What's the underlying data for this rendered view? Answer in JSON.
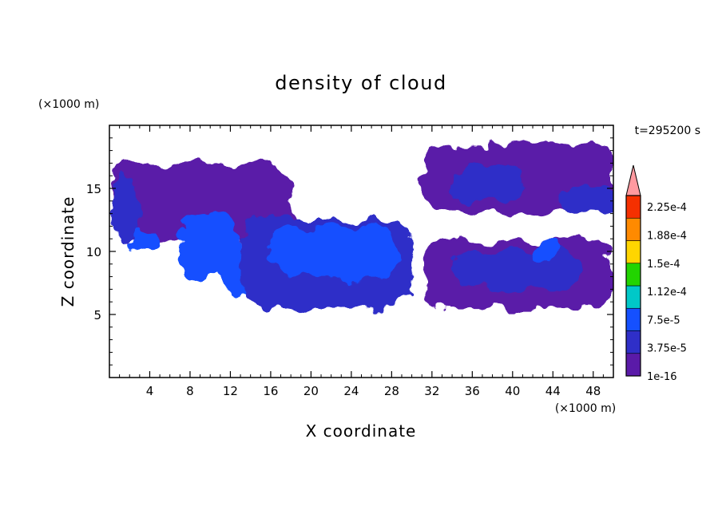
{
  "chart_data": {
    "type": "heatmap",
    "title": "density of cloud",
    "xlabel": "X coordinate",
    "ylabel": "Z coordinate",
    "x_unit": "(×1000 m)",
    "y_unit": "(×1000 m)",
    "time_label": "t=295200 s",
    "xlim": [
      0,
      50
    ],
    "ylim": [
      0,
      20
    ],
    "x_ticks": [
      4,
      8,
      12,
      16,
      20,
      24,
      28,
      32,
      36,
      40,
      44,
      48
    ],
    "y_ticks": [
      5,
      10,
      15
    ],
    "colorbar": {
      "labels": [
        "1e-16",
        "3.75e-5",
        "7.5e-5",
        "1.12e-4",
        "1.5e-4",
        "1.88e-4",
        "2.25e-4"
      ],
      "colors": [
        "#5a1aa8",
        "#2f2fc8",
        "#1550ff",
        "#00c8c8",
        "#22d400",
        "#ffd500",
        "#ff8a00",
        "#f53000",
        "#ff9aa0"
      ],
      "extend": "max"
    },
    "regions": [
      {
        "x": [
          0.2,
          18
        ],
        "z": [
          11,
          17
        ],
        "value": 0.25
      },
      {
        "x": [
          0.2,
          3
        ],
        "z": [
          11,
          16
        ],
        "value": 1.2
      },
      {
        "x": [
          2,
          5
        ],
        "z": [
          10,
          12
        ],
        "value": 1.6
      },
      {
        "x": [
          7,
          13
        ],
        "z": [
          8,
          13
        ],
        "value": 2.3
      },
      {
        "x": [
          11,
          16
        ],
        "z": [
          6.5,
          10
        ],
        "value": 2.1
      },
      {
        "x": [
          13,
          30
        ],
        "z": [
          5.5,
          12.5
        ],
        "value": 1.0
      },
      {
        "x": [
          16,
          29
        ],
        "z": [
          8,
          12
        ],
        "value": 1.7
      },
      {
        "x": [
          20,
          26
        ],
        "z": [
          9,
          11.5
        ],
        "value": 1.85
      },
      {
        "x": [
          31,
          50
        ],
        "z": [
          5.5,
          11
        ],
        "value": 0.3
      },
      {
        "x": [
          34,
          47
        ],
        "z": [
          7,
          10
        ],
        "value": 1.1
      },
      {
        "x": [
          42,
          45
        ],
        "z": [
          9,
          11
        ],
        "value": 1.6
      },
      {
        "x": [
          31,
          50
        ],
        "z": [
          13,
          18.5
        ],
        "value": 0.3
      },
      {
        "x": [
          34,
          41
        ],
        "z": [
          14,
          17
        ],
        "value": 0.9
      },
      {
        "x": [
          44,
          50
        ],
        "z": [
          13,
          15
        ],
        "value": 1.1
      }
    ]
  }
}
